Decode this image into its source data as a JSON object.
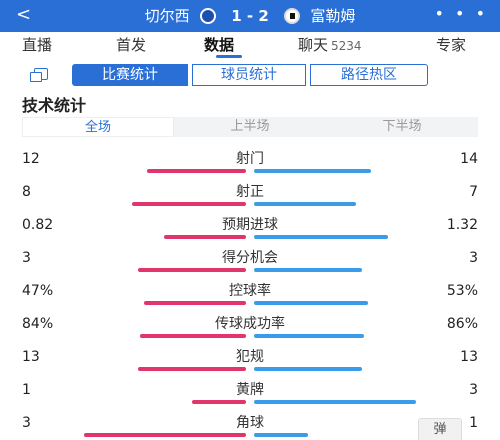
{
  "header": {
    "home_team": "切尔西",
    "score": "1 - 2",
    "away_team": "富勒姆",
    "back_icon": "<",
    "more_icon": "• • •"
  },
  "tabs": [
    {
      "label": "直播"
    },
    {
      "label": "首发"
    },
    {
      "label": "数据",
      "active": true
    },
    {
      "label": "聊天",
      "count": "5234"
    },
    {
      "label": "专家"
    }
  ],
  "subtabs": [
    "比赛统计",
    "球员统计",
    "路径热区"
  ],
  "section_title": "技术统计",
  "periods": [
    "全场",
    "上半场",
    "下半场"
  ],
  "stats": [
    {
      "label": "射门",
      "home": "12",
      "away": "14",
      "home_share": 0.46
    },
    {
      "label": "射正",
      "home": "8",
      "away": "7",
      "home_share": 0.53
    },
    {
      "label": "预期进球",
      "home": "0.82",
      "away": "1.32",
      "home_share": 0.38
    },
    {
      "label": "得分机会",
      "home": "3",
      "away": "3",
      "home_share": 0.5
    },
    {
      "label": "控球率",
      "home": "47%",
      "away": "53%",
      "home_share": 0.47
    },
    {
      "label": "传球成功率",
      "home": "84%",
      "away": "86%",
      "home_share": 0.49
    },
    {
      "label": "犯规",
      "home": "13",
      "away": "13",
      "home_share": 0.5
    },
    {
      "label": "黄牌",
      "home": "1",
      "away": "3",
      "home_share": 0.25
    },
    {
      "label": "角球",
      "home": "3",
      "away": "1",
      "home_share": 0.75
    }
  ],
  "float_button": "弹",
  "colors": {
    "accent": "#2a6fd6",
    "home_bar": "#e0366b",
    "away_bar": "#3a9be8"
  }
}
